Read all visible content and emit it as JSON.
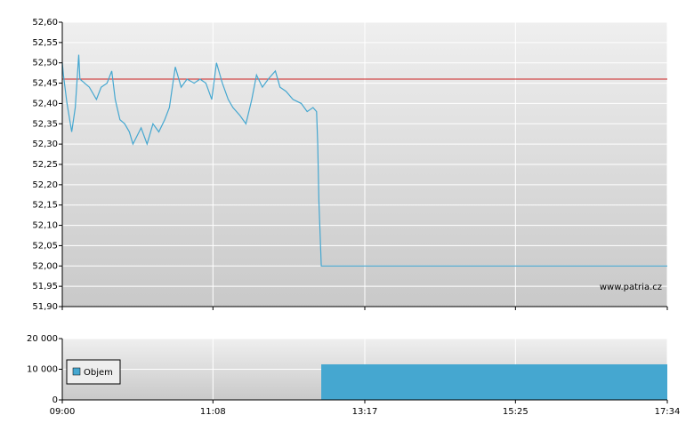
{
  "chart_data": [
    {
      "type": "line",
      "x": [
        "09:00",
        "09:01",
        "09:04",
        "09:08",
        "09:11",
        "09:14",
        "09:15",
        "09:19",
        "09:23",
        "09:29",
        "09:33",
        "09:38",
        "09:42",
        "09:45",
        "09:49",
        "09:53",
        "09:57",
        "10:00",
        "10:07",
        "10:12",
        "10:17",
        "10:22",
        "10:27",
        "10:31",
        "10:36",
        "10:41",
        "10:46",
        "10:52",
        "10:57",
        "11:02",
        "11:07",
        "11:11",
        "11:16",
        "11:21",
        "11:25",
        "11:31",
        "11:36",
        "11:41",
        "11:45",
        "11:50",
        "11:55",
        "12:01",
        "12:05",
        "12:10",
        "12:16",
        "12:23",
        "12:28",
        "12:33",
        "12:36",
        "12:37",
        "12:38",
        "12:40",
        "17:34"
      ],
      "values": [
        52.5,
        52.47,
        52.4,
        52.33,
        52.39,
        52.52,
        52.46,
        52.45,
        52.44,
        52.41,
        52.44,
        52.45,
        52.48,
        52.41,
        52.36,
        52.35,
        52.33,
        52.3,
        52.34,
        52.3,
        52.35,
        52.33,
        52.36,
        52.39,
        52.49,
        52.44,
        52.46,
        52.45,
        52.46,
        52.45,
        52.41,
        52.5,
        52.45,
        52.41,
        52.39,
        52.37,
        52.35,
        52.41,
        52.47,
        52.44,
        52.46,
        52.48,
        52.44,
        52.43,
        52.41,
        52.4,
        52.38,
        52.39,
        52.38,
        52.3,
        52.16,
        52.0,
        52.0
      ],
      "color": "#45a7d0",
      "reference": 52.46,
      "reference_color": "#cc2222",
      "xlim": [
        "09:00",
        "17:34"
      ],
      "ylim": [
        51.9,
        52.6
      ],
      "yticks": [
        {
          "value": 51.9,
          "label": "51,90"
        },
        {
          "value": 51.95,
          "label": "51,95"
        },
        {
          "value": 52.0,
          "label": "52,00"
        },
        {
          "value": 52.05,
          "label": "52,05"
        },
        {
          "value": 52.1,
          "label": "52,10"
        },
        {
          "value": 52.15,
          "label": "52,15"
        },
        {
          "value": 52.2,
          "label": "52,20"
        },
        {
          "value": 52.25,
          "label": "52,25"
        },
        {
          "value": 52.3,
          "label": "52,30"
        },
        {
          "value": 52.35,
          "label": "52,35"
        },
        {
          "value": 52.4,
          "label": "52,40"
        },
        {
          "value": 52.45,
          "label": "52,45"
        },
        {
          "value": 52.5,
          "label": "52,50"
        },
        {
          "value": 52.55,
          "label": "52,55"
        },
        {
          "value": 52.6,
          "label": "52,60"
        }
      ],
      "watermark": "www.patria.cz",
      "grid": true
    },
    {
      "type": "histogram",
      "bins": [
        "12:40",
        "17:34"
      ],
      "series": [
        {
          "name": "Objem",
          "color": "#45a7d0",
          "values": [
            11600
          ]
        }
      ],
      "xlim": [
        "09:00",
        "17:34"
      ],
      "xticks": [
        "09:00",
        "11:08",
        "13:17",
        "15:25",
        "17:34"
      ],
      "ylim": [
        0,
        20000
      ],
      "yticks": [
        0,
        {
          "value": 10000,
          "label": "10 000"
        },
        {
          "value": 20000,
          "label": "20 000"
        }
      ],
      "grid": true
    }
  ]
}
